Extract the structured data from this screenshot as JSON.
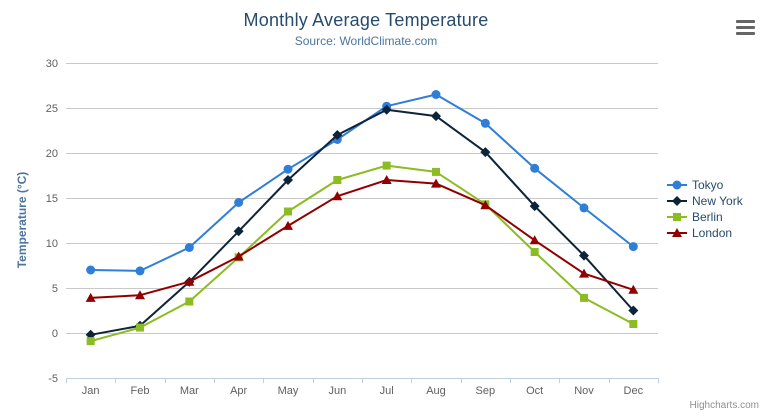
{
  "chart_data": {
    "type": "line",
    "title": "Monthly Average Temperature",
    "subtitle": "Source: WorldClimate.com",
    "xlabel": "",
    "ylabel": "Temperature (°C)",
    "categories": [
      "Jan",
      "Feb",
      "Mar",
      "Apr",
      "May",
      "Jun",
      "Jul",
      "Aug",
      "Sep",
      "Oct",
      "Nov",
      "Dec"
    ],
    "ylim": [
      -5,
      30
    ],
    "ytick_interval": 5,
    "grid": true,
    "legend_position": "right",
    "series": [
      {
        "name": "Tokyo",
        "color": "#2f7ed8",
        "marker": "circle",
        "values": [
          7.0,
          6.9,
          9.5,
          14.5,
          18.2,
          21.5,
          25.2,
          26.5,
          23.3,
          18.3,
          13.9,
          9.6
        ]
      },
      {
        "name": "New York",
        "color": "#0d233a",
        "marker": "diamond",
        "values": [
          -0.2,
          0.8,
          5.7,
          11.3,
          17.0,
          22.0,
          24.8,
          24.1,
          20.1,
          14.1,
          8.6,
          2.5
        ]
      },
      {
        "name": "Berlin",
        "color": "#8bbc21",
        "marker": "square",
        "values": [
          -0.9,
          0.6,
          3.5,
          8.4,
          13.5,
          17.0,
          18.6,
          17.9,
          14.3,
          9.0,
          3.9,
          1.0
        ]
      },
      {
        "name": "London",
        "color": "#910000",
        "marker": "triangle",
        "values": [
          3.9,
          4.2,
          5.7,
          8.5,
          11.9,
          15.2,
          17.0,
          16.6,
          14.2,
          10.3,
          6.6,
          4.8
        ]
      }
    ],
    "colors": {
      "title": "#274b6d",
      "subtitle": "#4d759e",
      "axis_title": "#4d759e",
      "tick_label": "#606060",
      "gridline": "#c9c9c9",
      "axis_line": "#c0d0e0",
      "legend_text": "#274b6d",
      "credits_text": "#909090"
    },
    "credits": "Highcharts.com"
  },
  "icons": {
    "export_menu": "hamburger-menu-icon"
  }
}
